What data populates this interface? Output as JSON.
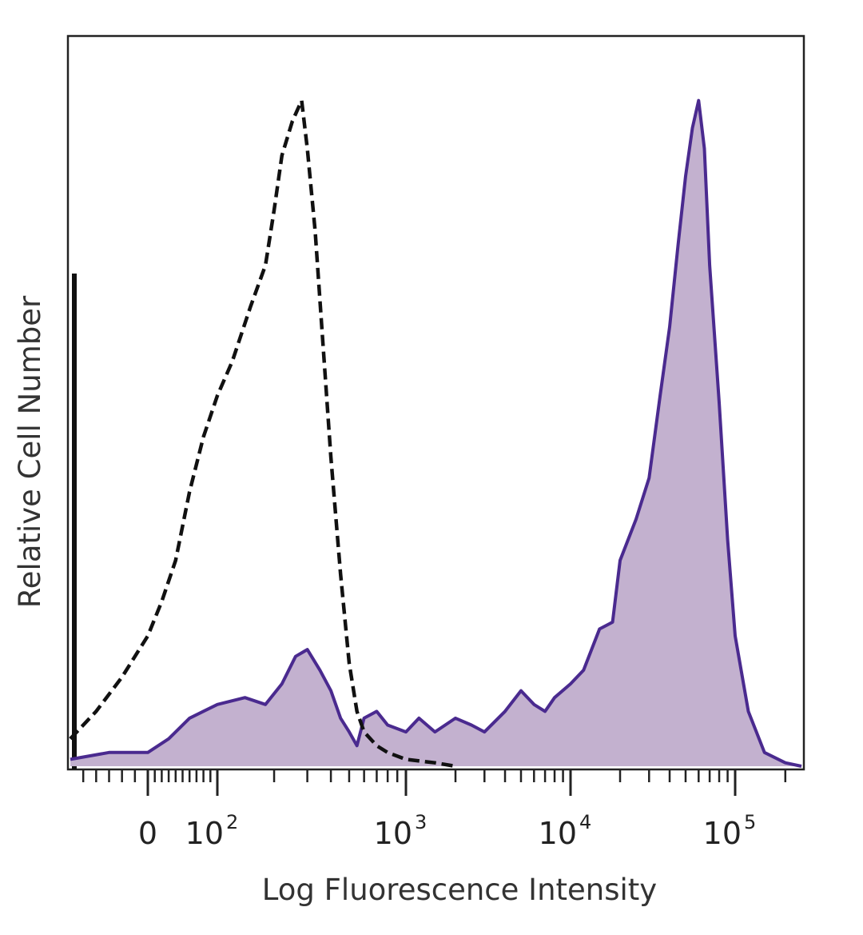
{
  "chart_data": {
    "type": "area",
    "xlabel": "Log Fluorescence Intensity",
    "ylabel": "Relative Cell Number",
    "x_scale": "biexponential",
    "x_ticks": [
      {
        "value": 0,
        "base": "0",
        "exp": ""
      },
      {
        "value": 100,
        "base": "10",
        "exp": "2"
      },
      {
        "value": 1000,
        "base": "10",
        "exp": "3"
      },
      {
        "value": 10000,
        "base": "10",
        "exp": "4"
      },
      {
        "value": 100000,
        "base": "10",
        "exp": "5"
      }
    ],
    "xlim": [
      -60,
      250000
    ],
    "ylim": [
      0,
      100
    ],
    "grid": false,
    "legend": "none",
    "series": [
      {
        "style": "dashed outline",
        "color": "#111111",
        "fill": "none",
        "x": [
          -60,
          -40,
          -20,
          0,
          20,
          40,
          60,
          80,
          100,
          120,
          150,
          180,
          200,
          220,
          250,
          280,
          300,
          330,
          360,
          400,
          450,
          500,
          550,
          600,
          700,
          800,
          1000,
          1500,
          2000
        ],
        "y": [
          4,
          8,
          13,
          19,
          24,
          30,
          40,
          48,
          54,
          59,
          67,
          73,
          81,
          89,
          94,
          97,
          90,
          78,
          63,
          45,
          28,
          15,
          8,
          5,
          3,
          2,
          1,
          0.5,
          0
        ]
      },
      {
        "style": "filled",
        "color": "#4a2a8f",
        "fill": "#c3b1cf",
        "x": [
          -60,
          -30,
          0,
          30,
          60,
          100,
          140,
          180,
          220,
          260,
          300,
          350,
          400,
          450,
          500,
          550,
          600,
          700,
          800,
          1000,
          1200,
          1500,
          2000,
          2500,
          3000,
          4000,
          5000,
          6000,
          7000,
          8000,
          10000,
          12000,
          15000,
          18000,
          20000,
          25000,
          30000,
          35000,
          40000,
          45000,
          50000,
          55000,
          60000,
          65000,
          70000,
          80000,
          90000,
          100000,
          120000,
          150000,
          200000,
          250000
        ],
        "y": [
          1,
          2,
          2,
          4,
          7,
          9,
          10,
          9,
          12,
          16,
          17,
          14,
          11,
          7,
          5,
          3,
          7,
          8,
          6,
          5,
          7,
          5,
          7,
          6,
          5,
          8,
          11,
          9,
          8,
          10,
          12,
          14,
          20,
          21,
          30,
          36,
          42,
          54,
          64,
          76,
          86,
          93,
          97,
          90,
          73,
          53,
          33,
          19,
          8,
          2,
          0.5,
          0
        ]
      }
    ]
  }
}
